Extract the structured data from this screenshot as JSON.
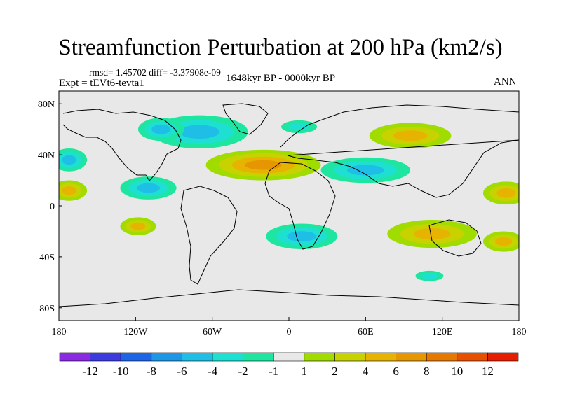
{
  "chart_data": {
    "type": "heatmap",
    "title": "Streamfunction Perturbation at 200 hPa (km2/s)",
    "stats_label": "rmsd= 1.45702 diff= -3.37908e-09",
    "experiment_label": "Expt = tEVt6-tevta1",
    "period_label": "1648kyr BP - 0000kyr BP",
    "season_label": "ANN",
    "x_ticks": [
      {
        "value": -180,
        "label": "180"
      },
      {
        "value": -120,
        "label": "120W"
      },
      {
        "value": -60,
        "label": "60W"
      },
      {
        "value": 0,
        "label": "0"
      },
      {
        "value": 60,
        "label": "60E"
      },
      {
        "value": 120,
        "label": "120E"
      },
      {
        "value": 180,
        "label": "180"
      }
    ],
    "y_ticks": [
      {
        "value": 80,
        "label": "80N"
      },
      {
        "value": 40,
        "label": "40N"
      },
      {
        "value": 0,
        "label": "0"
      },
      {
        "value": -40,
        "label": "40S"
      },
      {
        "value": -80,
        "label": "80S"
      }
    ],
    "xlim": [
      -180,
      180
    ],
    "ylim": [
      -90,
      90
    ],
    "colorbar": {
      "colors": [
        "#8a2be2",
        "#3b3be0",
        "#1e64e6",
        "#1e96e6",
        "#1ebee6",
        "#1ee0d2",
        "#1ee6a0",
        "#e8e8e8",
        "#a0dc00",
        "#c8d200",
        "#e6b400",
        "#e69600",
        "#e67800",
        "#e65000",
        "#e61e00"
      ],
      "labels": [
        "-12",
        "-10",
        "-8",
        "-6",
        "-4",
        "-2",
        "-1",
        "1",
        "2",
        "4",
        "6",
        "8",
        "10",
        "12"
      ],
      "levels": [
        -12,
        -10,
        -8,
        -6,
        -4,
        -2,
        -1,
        1,
        2,
        4,
        6,
        8,
        10,
        12
      ]
    },
    "anomaly_centers": [
      {
        "lon": -70,
        "lat": 58,
        "value": -5,
        "extent_lon": 38,
        "extent_lat": 13
      },
      {
        "lon": -100,
        "lat": 60,
        "value": -4,
        "extent_lon": 18,
        "extent_lat": 9
      },
      {
        "lon": -110,
        "lat": 14,
        "value": -5,
        "extent_lon": 22,
        "extent_lat": 9
      },
      {
        "lon": -172,
        "lat": 36,
        "value": -5,
        "extent_lon": 14,
        "extent_lat": 9
      },
      {
        "lon": 60,
        "lat": 28,
        "value": -5,
        "extent_lon": 35,
        "extent_lat": 10
      },
      {
        "lon": 10,
        "lat": -24,
        "value": -5,
        "extent_lon": 28,
        "extent_lat": 10
      },
      {
        "lon": 110,
        "lat": -55,
        "value": -2,
        "extent_lon": 11,
        "extent_lat": 4
      },
      {
        "lon": 8,
        "lat": 62,
        "value": -2,
        "extent_lon": 14,
        "extent_lat": 5
      },
      {
        "lon": -20,
        "lat": 32,
        "value": 6,
        "extent_lon": 45,
        "extent_lat": 12
      },
      {
        "lon": 95,
        "lat": 55,
        "value": 4,
        "extent_lon": 32,
        "extent_lat": 10
      },
      {
        "lon": 112,
        "lat": -22,
        "value": 4,
        "extent_lon": 35,
        "extent_lat": 11
      },
      {
        "lon": 170,
        "lat": 10,
        "value": 4,
        "extent_lon": 18,
        "extent_lat": 9
      },
      {
        "lon": -172,
        "lat": 12,
        "value": 4,
        "extent_lon": 14,
        "extent_lat": 8
      },
      {
        "lon": -118,
        "lat": -16,
        "value": 4,
        "extent_lon": 14,
        "extent_lat": 7
      },
      {
        "lon": 168,
        "lat": -28,
        "value": 4,
        "extent_lon": 16,
        "extent_lat": 8
      }
    ]
  }
}
